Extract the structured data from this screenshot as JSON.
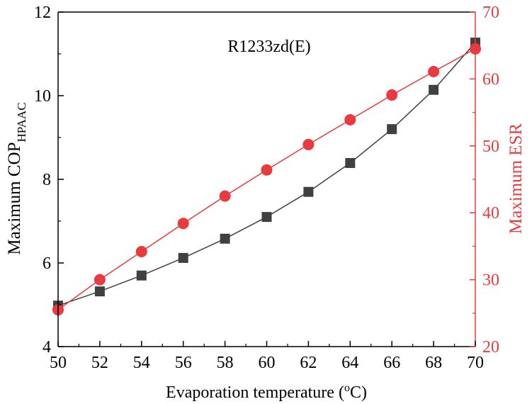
{
  "chart_data": {
    "type": "line",
    "title": "R1233zd(E)",
    "xlabel": "Evaporation temperature (",
    "xlabel_sup": "o",
    "xlabel_suffix": "C)",
    "ylabel_left_main": "Maximum COP",
    "ylabel_left_sub": "HPAAC",
    "ylabel_right": "Maximum ESR",
    "xlim": [
      50,
      70
    ],
    "ylim_left": [
      4,
      12
    ],
    "ylim_right": [
      20,
      70
    ],
    "x_ticks": [
      50,
      52,
      54,
      56,
      58,
      60,
      62,
      64,
      66,
      68,
      70
    ],
    "y_left_ticks": [
      4,
      6,
      8,
      10,
      12
    ],
    "y_right_ticks": [
      20,
      30,
      40,
      50,
      60,
      70
    ],
    "x": [
      50,
      52,
      54,
      56,
      58,
      60,
      62,
      64,
      66,
      68,
      70
    ],
    "series": [
      {
        "name": "Maximum COP_HPAAC",
        "axis": "left",
        "marker": "square",
        "color": "#404040",
        "values": [
          4.98,
          5.32,
          5.7,
          6.12,
          6.58,
          7.1,
          7.7,
          8.39,
          9.2,
          10.14,
          11.27
        ]
      },
      {
        "name": "Maximum ESR",
        "axis": "right",
        "marker": "circle",
        "color": "#e83a3f",
        "values": [
          25.5,
          30.0,
          34.2,
          38.4,
          42.5,
          46.4,
          50.2,
          53.9,
          57.6,
          61.1,
          64.5
        ]
      }
    ]
  }
}
